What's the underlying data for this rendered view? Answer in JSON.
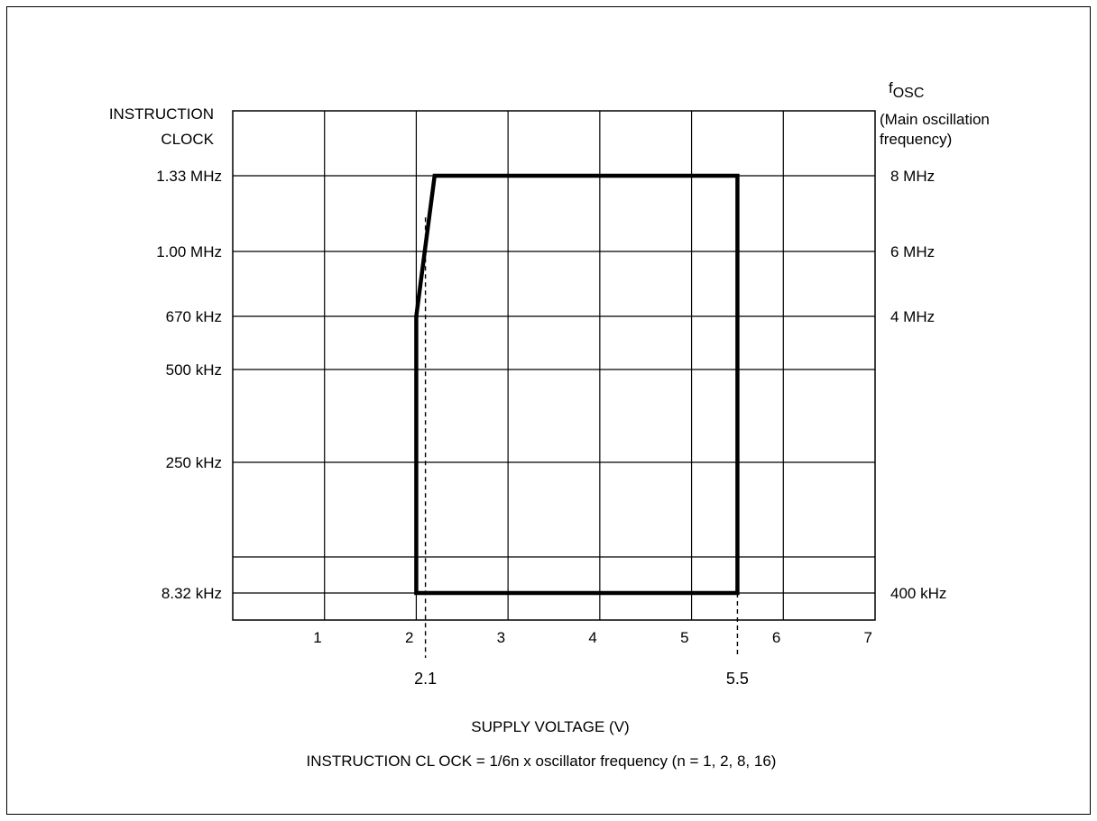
{
  "chart_data": {
    "type": "area",
    "title": "",
    "ylabel_left_lines": [
      "INSTRUCTION",
      "CLOCK"
    ],
    "ylabel_right": {
      "main": "f",
      "sub": "OSC",
      "lines": [
        "(Main oscillation",
        "frequency)"
      ]
    },
    "xlabel": "SUPPLY VOLTAGE (V)",
    "footnote": "INSTRUCTION CL OCK = 1/6n  x  oscillator frequency  (n =  1, 2, 8, 16)",
    "xlim": [
      0,
      7
    ],
    "x_ticks": [
      1,
      2,
      3,
      4,
      5,
      6,
      7
    ],
    "y_levels_left": [
      {
        "label": "1.33 MHz"
      },
      {
        "label": "1.00 MHz"
      },
      {
        "label": "670 kHz"
      },
      {
        "label": "500 kHz"
      },
      {
        "label": "250 kHz"
      },
      {
        "label": ""
      },
      {
        "label": "8.32 kHz"
      }
    ],
    "y_levels_right": [
      "8 MHz",
      "6 MHz",
      "4 MHz",
      "",
      "",
      "",
      "400 kHz"
    ],
    "operating_region": {
      "points": [
        {
          "v": 2.0,
          "level": 6
        },
        {
          "v": 2.0,
          "level": 2
        },
        {
          "v": 2.2,
          "level": 0
        },
        {
          "v": 5.5,
          "level": 0
        },
        {
          "v": 5.5,
          "level": 6
        }
      ]
    },
    "reference_lines": [
      {
        "v": 2.1,
        "label": "2.1",
        "from_level": 0.55
      },
      {
        "v": 5.5,
        "label": "5.5",
        "from_level": 6
      }
    ],
    "grid": true
  }
}
